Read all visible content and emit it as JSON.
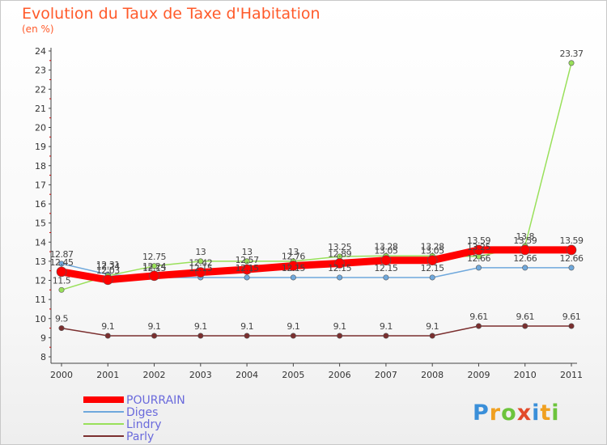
{
  "title": "Evolution du Taux de Taxe d'Habitation",
  "subtitle": "(en %)",
  "logo_text": "Proxiti",
  "chart_data": {
    "type": "line",
    "x": [
      "2000",
      "2001",
      "2002",
      "2003",
      "2004",
      "2005",
      "2006",
      "2007",
      "2008",
      "2009",
      "2010",
      "2011"
    ],
    "ylim": [
      8,
      24
    ],
    "y_ticks": [
      8,
      9,
      10,
      11,
      12,
      13,
      14,
      15,
      16,
      17,
      18,
      19,
      20,
      21,
      22,
      23,
      24
    ],
    "grid": false,
    "legend_position": "bottom-left",
    "series": [
      {
        "name": "POURRAIN",
        "color": "#ff0000",
        "values": [
          12.45,
          12.03,
          12.24,
          12.42,
          12.57,
          12.76,
          12.89,
          13.05,
          13.05,
          13.59,
          13.59,
          13.59
        ]
      },
      {
        "name": "Diges",
        "color": "#6fa8dc",
        "values": [
          12.87,
          12.31,
          12.15,
          12.15,
          12.15,
          12.15,
          12.15,
          12.15,
          12.15,
          12.66,
          12.66,
          12.66
        ]
      },
      {
        "name": "Lindry",
        "color": "#99e05a",
        "values": [
          11.5,
          12.24,
          12.75,
          13,
          13,
          13,
          13.25,
          13.28,
          13.28,
          13.25,
          13.8,
          23.37
        ]
      },
      {
        "name": "Parly",
        "color": "#7b2f2f",
        "values": [
          9.5,
          9.1,
          9.1,
          9.1,
          9.1,
          9.1,
          9.1,
          9.1,
          9.1,
          9.61,
          9.61,
          9.61
        ]
      }
    ],
    "labels": [
      [
        "12.45",
        "12.03",
        "12.24",
        "12.42",
        "12.57",
        "12.76",
        "12.89",
        "13.05",
        "13.05",
        "13.59",
        "13.59",
        "13.59"
      ],
      [
        "12.87",
        "12.31",
        "12.15",
        "12.15",
        "12.15",
        "12.15",
        "12.15",
        "12.15",
        "12.15",
        "12.66",
        "12.66",
        "12.66"
      ],
      [
        "11.5",
        "12.24",
        "12.75",
        "13",
        "13",
        "13",
        "13.25",
        "13.28",
        "13.28",
        "13.25",
        "13.8",
        "23.37"
      ],
      [
        "9.5",
        "9.1",
        "9.1",
        "9.1",
        "9.1",
        "9.1",
        "9.1",
        "9.1",
        "9.1",
        "9.61",
        "9.61",
        "9.61"
      ]
    ]
  }
}
